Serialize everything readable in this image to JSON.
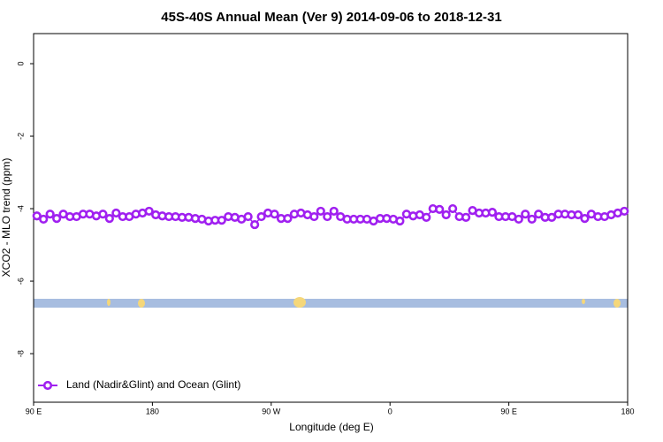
{
  "chart_data": {
    "type": "line",
    "title": "45S-40S Annual Mean (Ver 9)   2014-09-06 to 2018-12-31",
    "x_label": "Longitude (deg E)",
    "y_label": "XCO2 - MLO trend (ppm)",
    "xlim": [
      90,
      540
    ],
    "ylim": [
      -9.34,
      0.83
    ],
    "xticks": [
      {
        "value": 90,
        "label": "90 E"
      },
      180,
      {
        "value": 270,
        "label": "90 W"
      },
      {
        "value": 360,
        "label": "0"
      },
      {
        "value": 450,
        "label": "90 E"
      },
      {
        "value": 540,
        "label": "180"
      }
    ],
    "yticks": [
      0,
      -2,
      -4,
      -6,
      -8
    ],
    "legend": "bottom-left",
    "series": [
      {
        "name": "Land (Nadir&Glint) and Ocean (Glint)",
        "color": "#a020f0",
        "x": [
          92.5,
          97.5,
          102.5,
          107.5,
          112.5,
          117.5,
          122.5,
          127.5,
          132.5,
          137.5,
          142.5,
          147.5,
          152.5,
          157.5,
          162.5,
          167.5,
          172.5,
          177.5,
          182.5,
          187.5,
          192.5,
          197.5,
          202.5,
          207.5,
          212.5,
          217.5,
          222.5,
          227.5,
          232.5,
          237.5,
          242.5,
          247.5,
          252.5,
          257.5,
          262.5,
          267.5,
          272.5,
          277.5,
          282.5,
          287.5,
          292.5,
          297.5,
          302.5,
          307.5,
          312.5,
          317.5,
          322.5,
          327.5,
          332.5,
          337.5,
          342.5,
          347.5,
          352.5,
          357.5,
          362.5,
          367.5,
          372.5,
          377.5,
          382.5,
          387.5,
          392.5,
          397.5,
          402.5,
          407.5,
          412.5,
          417.5,
          422.5,
          427.5,
          432.5,
          437.5,
          442.5,
          447.5,
          452.5,
          457.5,
          462.5,
          467.5,
          472.5,
          477.5,
          482.5,
          487.5,
          492.5,
          497.5,
          502.5,
          507.5,
          512.5,
          517.5,
          522.5,
          527.5,
          532.5,
          537.5
        ],
        "values": [
          -4.2,
          -4.29,
          -4.15,
          -4.27,
          -4.15,
          -4.22,
          -4.22,
          -4.15,
          -4.15,
          -4.2,
          -4.15,
          -4.27,
          -4.12,
          -4.22,
          -4.22,
          -4.15,
          -4.12,
          -4.07,
          -4.17,
          -4.2,
          -4.22,
          -4.22,
          -4.24,
          -4.24,
          -4.27,
          -4.29,
          -4.34,
          -4.32,
          -4.32,
          -4.22,
          -4.24,
          -4.29,
          -4.22,
          -4.44,
          -4.22,
          -4.12,
          -4.15,
          -4.27,
          -4.27,
          -4.15,
          -4.12,
          -4.17,
          -4.22,
          -4.07,
          -4.22,
          -4.07,
          -4.22,
          -4.29,
          -4.29,
          -4.29,
          -4.29,
          -4.34,
          -4.27,
          -4.27,
          -4.29,
          -4.34,
          -4.15,
          -4.2,
          -4.17,
          -4.24,
          -4.0,
          -4.02,
          -4.17,
          -4.0,
          -4.22,
          -4.24,
          -4.05,
          -4.12,
          -4.12,
          -4.1,
          -4.22,
          -4.22,
          -4.22,
          -4.29,
          -4.15,
          -4.29,
          -4.15,
          -4.24,
          -4.24,
          -4.15,
          -4.15,
          -4.17,
          -4.17,
          -4.27,
          -4.15,
          -4.22,
          -4.22,
          -4.17,
          -4.12,
          -4.07
        ]
      }
    ]
  }
}
